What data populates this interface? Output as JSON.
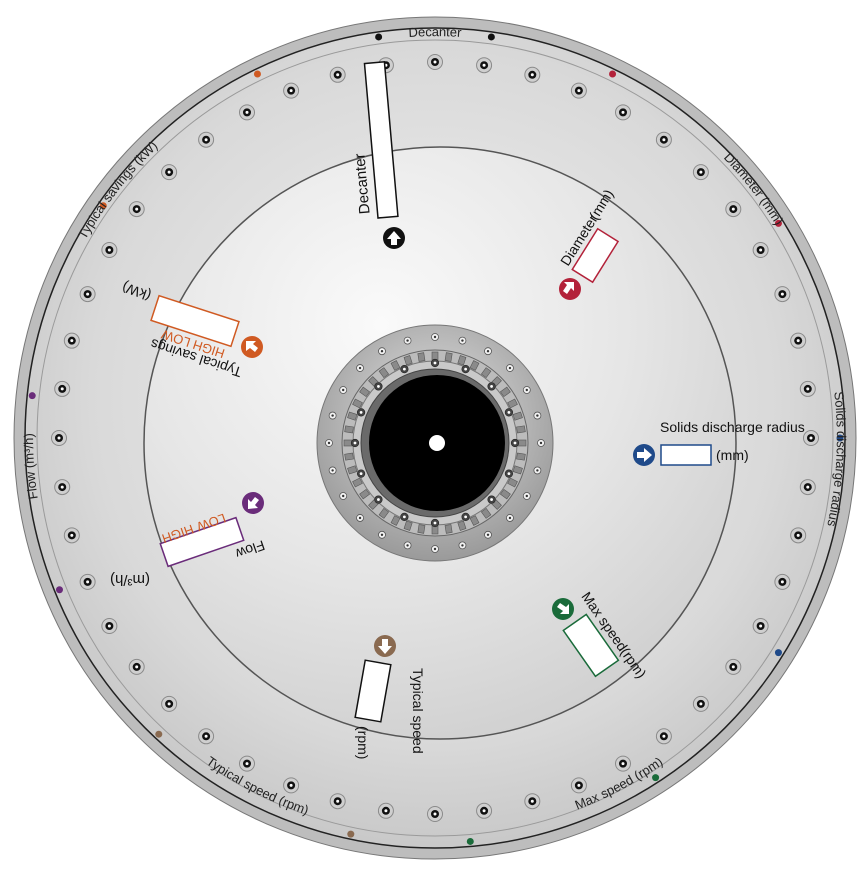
{
  "rim_labels": {
    "decanter": "Decanter",
    "diameter": "Diameter (mm)",
    "solids": "Solids discharge radius",
    "max_speed": "Max speed (rpm)",
    "typical_speed": "Typical speed (rpm)",
    "flow": "Flow (m³/h)",
    "savings": "Typical savings (kW)"
  },
  "windows": {
    "decanter": {
      "label": "Decanter"
    },
    "diameter": {
      "label": "Diameter",
      "unit": "(mm)"
    },
    "solids": {
      "label": "Solids discharge radius",
      "unit": "(mm)"
    },
    "max_speed": {
      "label": "Max speed",
      "unit": "(rpm)"
    },
    "typical_speed": {
      "label": "Typical speed",
      "unit": "(rpm)"
    },
    "flow": {
      "label": "Flow",
      "unit": "(m³/h)",
      "low": "LOW",
      "high": "HIGH"
    },
    "savings": {
      "label": "Typical savings",
      "unit": "(kW)",
      "low": "LOW",
      "high": "HIGH"
    }
  },
  "colors": {
    "decanter": "#111111",
    "diameter": "#b3223a",
    "solids": "#1f4a8a",
    "max_speed": "#1a6b3a",
    "typical_speed": "#8a6a50",
    "flow": "#6a2c7a",
    "savings": "#d05a22"
  }
}
